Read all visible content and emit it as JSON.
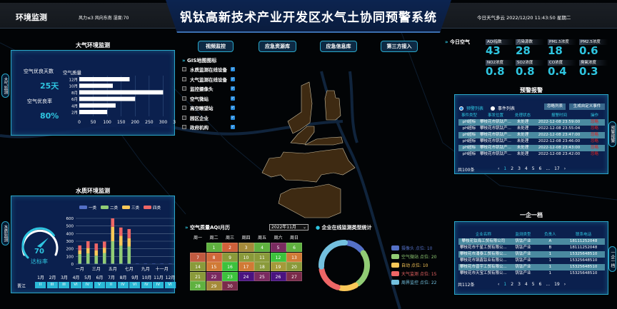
{
  "header": {
    "section": "环境监测",
    "weather_info": "风力≤3  风向东南  湿度:70",
    "title": "钒钛高新技术产业开发区水气土协同预警系统",
    "right_info": "今日天气多云  2022/12/20 11:43:50 星期二"
  },
  "nav": [
    "视频监控",
    "应急资源库",
    "应急信息库",
    "第三方接入"
  ],
  "air_panel": {
    "title": "大气环境监测",
    "side_tab": "大气监测",
    "good_days_label": "空气优良天数",
    "good_days": "25天",
    "good_rate_label": "空气优良率",
    "good_rate": "80%",
    "chart_title": "空气质量"
  },
  "water_panel": {
    "title": "水质环境监测",
    "side_tab": "水质监测",
    "gauge_value": "70",
    "gauge_fraction": 0.7,
    "gauge_label": "达标率",
    "river": "晋江",
    "months": [
      "1月",
      "2月",
      "3月",
      "4月",
      "5月",
      "6月",
      "7月",
      "8月",
      "9月",
      "10月",
      "11月",
      "12月"
    ],
    "grades": [
      "II",
      "III",
      "III",
      "VI",
      "IV",
      "V",
      "II",
      "IV",
      "VI",
      "IV",
      "IV",
      "VI"
    ]
  },
  "gis": {
    "title": "GIS地图图标",
    "items": [
      "水质监测在线设备",
      "大气监测在线设备",
      "监控摄像头",
      "空气微站",
      "高空瞭望站",
      "园区企业",
      "政府机构"
    ],
    "checked": true
  },
  "today_air": {
    "title": "今日空气",
    "tiles": [
      {
        "label": "AQI指数",
        "value": "43"
      },
      {
        "label": "污染源数",
        "value": "28"
      },
      {
        "label": "PM1.5浓度",
        "value": "18"
      },
      {
        "label": "PM2.5浓度",
        "value": "0.6"
      },
      {
        "label": "NO2浓度",
        "value": "0.8"
      },
      {
        "label": "SO2浓度",
        "value": "0.8"
      },
      {
        "label": "CO浓度",
        "value": "0.4"
      },
      {
        "label": "臭氧浓度",
        "value": "0.3"
      }
    ]
  },
  "alerts": {
    "title": "预警报警",
    "side_tab": "预警报警",
    "radio1": "预警列表",
    "radio2": "事件列表",
    "btn_ignore": "忽略列表",
    "btn_generate": "生成自定义事件",
    "headers": [
      "事件类型",
      "事发位置",
      "处理状态",
      "报警时间",
      "操作"
    ],
    "rows": [
      [
        "pH超标",
        "攀枝花市钒钛产...",
        "未处理",
        "2022-12-08 23:59:00",
        "忽略"
      ],
      [
        "pH超标",
        "攀枝花市钒钛产...",
        "未处理",
        "2022-12-08 23:55:04",
        "忽略"
      ],
      [
        "pH超标",
        "攀枝花市钒钛产...",
        "未处理",
        "2022-12-08 23:47:00",
        "忽略"
      ],
      [
        "pH超标",
        "攀枝花市钒钛产...",
        "未处理",
        "2022-12-08 23:46:00",
        "忽略"
      ],
      [
        "pH超标",
        "攀枝花市钒钛产...",
        "未处理",
        "2022-12-08 23:43:00",
        "忽略"
      ],
      [
        "pH超标",
        "攀枝花市钒钛产...",
        "未处理",
        "2022-12-08 23:42:00",
        "忽略"
      ]
    ],
    "total": "共100条",
    "pages": [
      "‹",
      "1",
      "2",
      "3",
      "4",
      "5",
      "6",
      "...",
      "17",
      "›"
    ]
  },
  "enterprise": {
    "title": "一企一档",
    "side_tab": "一企一档",
    "headers": [
      "企业名称",
      "监测类型",
      "负责人",
      "联系电话"
    ],
    "rows": [
      [
        "攀枝花钛海工贸有限公司",
        "钒钛产业",
        "A",
        "18111252048"
      ],
      [
        "攀枝花市千星工贸有限公...",
        "钒钛产业",
        "B",
        "18111252048"
      ],
      [
        "攀枝花市涌泰工贸有限公...",
        "钒钛产业",
        "1",
        "15325648510"
      ],
      [
        "攀枝花市钢鑫钛业有限公...",
        "钒钛产业",
        "1",
        "15325648510"
      ],
      [
        "攀枝花市晋宇工贸有限公...",
        "钒钛产业",
        "1",
        "15325648510"
      ],
      [
        "攀枝花市天宝工贸有限公...",
        "钒钛产业",
        "1",
        "15325648510"
      ]
    ],
    "total": "共112条",
    "pages": [
      "‹",
      "1",
      "2",
      "3",
      "4",
      "5",
      "6",
      "...",
      "19",
      "›"
    ]
  },
  "calendar": {
    "title": "空气质量AQI月历",
    "month_select": "2022年11月",
    "weekdays": [
      "周一",
      "周二",
      "周三",
      "周四",
      "周五",
      "周六",
      "周日"
    ],
    "start_weekday": 1,
    "day_colors": [
      "#5fb13f",
      "#d0603a",
      "#a58a3a",
      "#5fb13f",
      "#7a2a60",
      "#5fb13f",
      "#c05a40",
      "#d0683a",
      "#8a9a3a",
      "#8a9a3a",
      "#8a9a3a",
      "#3cc23c",
      "#d07a35",
      "#8a9a3a",
      "#d07a35",
      "#3cc23c",
      "#d07a35",
      "#8a9a3a",
      "#a59a3a",
      "#8a9a3a",
      "#8a9a3a",
      "#7a2a60",
      "#3cc23c",
      "#4a1380",
      "#7a2a60",
      "#4a1380",
      "#7a2b4a",
      "#5fb13f",
      "#a58a3a",
      "#7a2b4a"
    ]
  },
  "monitor_stats": {
    "title": "企业在线监测类型统计"
  },
  "chart_data": [
    {
      "type": "bar",
      "orientation": "horizontal",
      "title": "空气质量",
      "categories": [
        "12月",
        "10月",
        "8月",
        "6月",
        "4月",
        "2月"
      ],
      "values": [
        180,
        120,
        300,
        200,
        130,
        100
      ],
      "xlim": [
        0,
        350
      ],
      "xticks": [
        0,
        50,
        100,
        150,
        200,
        250,
        300,
        350
      ],
      "grid": true,
      "color": "#ffffff"
    },
    {
      "type": "bar",
      "stacked": true,
      "categories": [
        "1月",
        "2月",
        "3月",
        "4月",
        "5月",
        "6月",
        "7月",
        "8月",
        "9月",
        "10月",
        "11月",
        "12月"
      ],
      "tick_labels": [
        "一月",
        "三月",
        "五月",
        "七月",
        "九月",
        "十一月"
      ],
      "ylim": [
        0,
        600
      ],
      "yticks": [
        0,
        100,
        200,
        300,
        400,
        500,
        600
      ],
      "legend": "top",
      "series": [
        {
          "name": "一类",
          "color": "#5470c6",
          "values": [
            5,
            5,
            5,
            5,
            5,
            5,
            5,
            5,
            5,
            5,
            5,
            5
          ]
        },
        {
          "name": "二类",
          "color": "#91cc75",
          "values": [
            125,
            135,
            105,
            140,
            295,
            235,
            225,
            0,
            0,
            0,
            0,
            0
          ]
        },
        {
          "name": "三类",
          "color": "#fac858",
          "values": [
            50,
            70,
            70,
            70,
            190,
            130,
            110,
            0,
            0,
            0,
            0,
            0
          ]
        },
        {
          "name": "四类",
          "color": "#ee6666",
          "values": [
            65,
            90,
            90,
            80,
            110,
            110,
            120,
            0,
            0,
            0,
            0,
            0
          ]
        }
      ]
    },
    {
      "type": "pie",
      "donut": true,
      "legend": "right",
      "slices": [
        {
          "name": "摄像头",
          "label": "摄像头 点位: 10",
          "value": 10,
          "color": "#5470c6"
        },
        {
          "name": "空气微站",
          "label": "空气微站 点位: 20",
          "value": 20,
          "color": "#91cc75"
        },
        {
          "name": "自动",
          "label": "自动 点位: 10",
          "value": 10,
          "color": "#fac858"
        },
        {
          "name": "大气监测",
          "label": "大气监测 点位: 15",
          "value": 15,
          "color": "#ee6666"
        },
        {
          "name": "周界监控",
          "label": "周界监控 点位: 22",
          "value": 22,
          "color": "#73c0de"
        }
      ]
    }
  ]
}
